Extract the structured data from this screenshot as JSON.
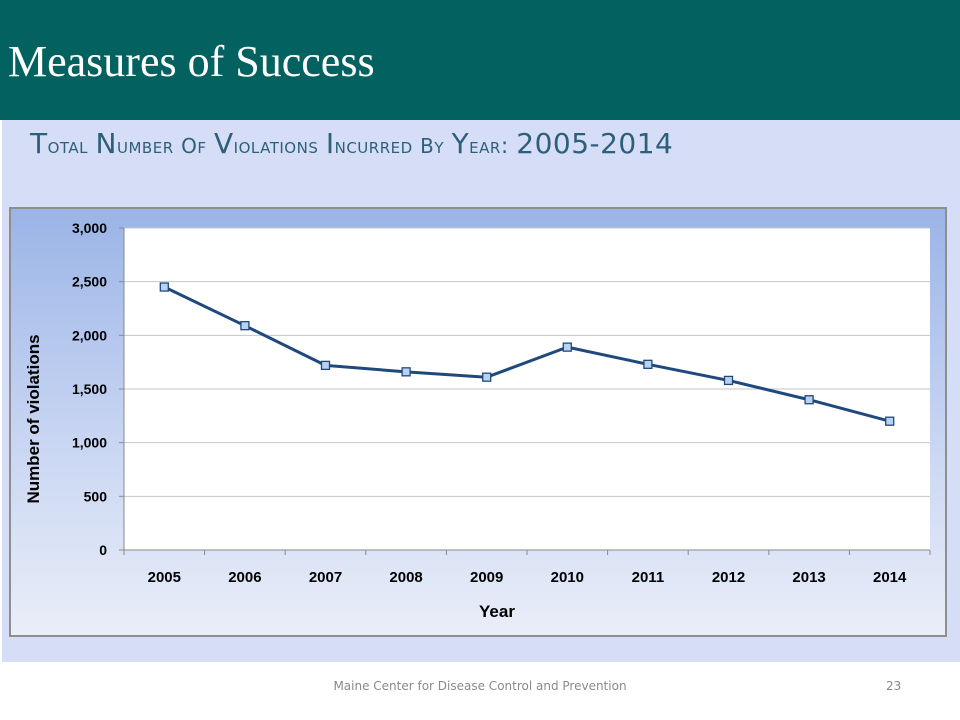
{
  "slide": {
    "title": "Measures of Success",
    "footer": "Maine Center for Disease Control and Prevention",
    "page_number": "23"
  },
  "colors": {
    "header_band": "#03625f",
    "panel": "#d6def7",
    "heading_text": "#2e5f79",
    "series_line": "#1f497d",
    "marker_fill": "#b8d2f0"
  },
  "chart_data": {
    "type": "line",
    "title": "Total Number of Violations Incurred by Year: 2005-2014",
    "xlabel": "Year",
    "ylabel": "Number of violations",
    "categories": [
      "2005",
      "2006",
      "2007",
      "2008",
      "2009",
      "2010",
      "2011",
      "2012",
      "2013",
      "2014"
    ],
    "series": [
      {
        "values": [
          2450,
          2090,
          1720,
          1660,
          1610,
          1890,
          1730,
          1580,
          1400,
          1200
        ]
      }
    ],
    "ylim": [
      0,
      3000
    ],
    "yticks": [
      0,
      500,
      1000,
      1500,
      2000,
      2500,
      3000
    ],
    "ytick_labels": [
      "0",
      "500",
      "1,000",
      "1,500",
      "2,000",
      "2,500",
      "3,000"
    ],
    "grid": true,
    "legend": "none"
  }
}
